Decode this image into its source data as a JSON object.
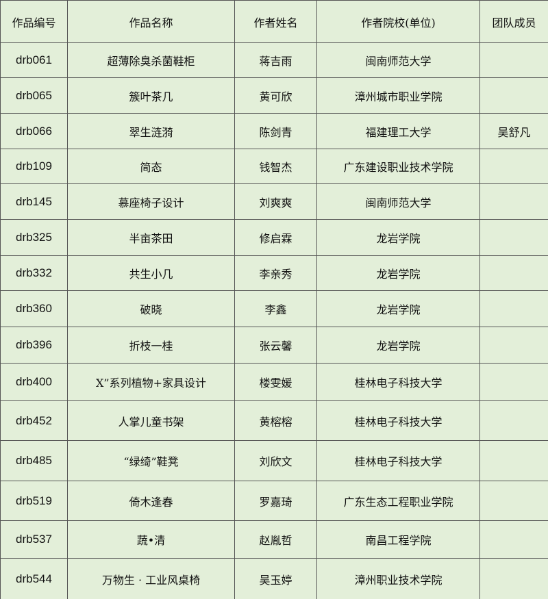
{
  "table": {
    "header": [
      "作品编号",
      "作品名称",
      "作者姓名",
      "作者院校(单位)",
      "团队成员"
    ],
    "rows": [
      [
        "drb061",
        "超薄除臭杀菌鞋柜",
        "蒋吉雨",
        "闽南师范大学"
      ],
      [
        "drb065",
        "簇叶茶几",
        "黄可欣",
        "漳州城市职业学院"
      ],
      [
        "drb066",
        "翠生涟漪",
        "陈剑青",
        "福建理工大学",
        "吴舒凡"
      ],
      [
        "drb109",
        "简态",
        "钱智杰",
        "广东建设职业技术学院"
      ],
      [
        "drb145",
        "慕座椅子设计",
        "刘爽爽",
        "闽南师范大学"
      ],
      [
        "drb325",
        "半亩茶田",
        "修启霖",
        "龙岩学院"
      ],
      [
        "drb332",
        "共生小几",
        "李亲秀",
        "龙岩学院"
      ],
      [
        "drb360",
        "破晓",
        "李鑫",
        "龙岩学院"
      ],
      [
        "drb396",
        "折枝一桂",
        "张云馨",
        "龙岩学院"
      ],
      [
        "drb400",
        "X”系列植物+家具设计",
        "楼雯媛",
        "桂林电子科技大学"
      ],
      [
        "drb452",
        "人掌儿童书架",
        "黄榕榕",
        "桂林电子科技大学"
      ],
      [
        "drb485",
        "“绿绮”鞋凳",
        "刘欣文",
        "桂林电子科技大学"
      ],
      [
        "drb519",
        "倚木逢春",
        "罗嘉琦",
        "广东生态工程职业学院"
      ],
      [
        "drb537",
        "蔬•清",
        "赵胤哲",
        "南昌工程学院"
      ],
      [
        "drb544",
        "万物生 · 工业风桌椅",
        "吴玉婷",
        "漳州职业技术学院"
      ]
    ]
  }
}
